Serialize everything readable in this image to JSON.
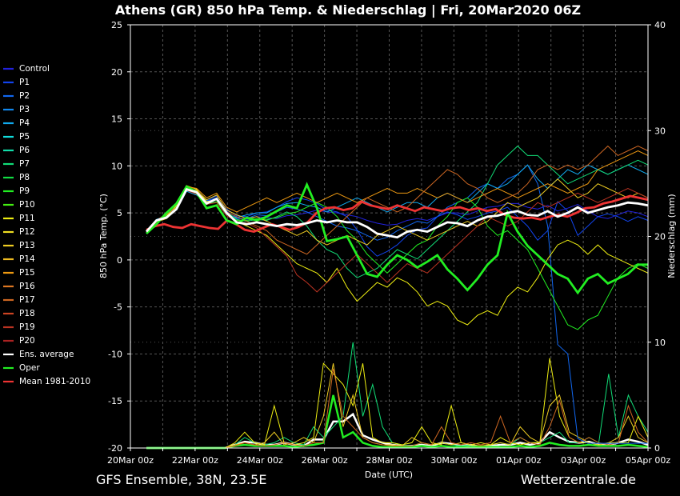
{
  "header": {
    "title": "Athens  (GR)  850 hPa Temp. & Niederschlag | Fri, 20Mar2020 06Z"
  },
  "footer": {
    "left": "GFS Ensemble, 38N, 23.5E",
    "right": "Wetterzentrale.de"
  },
  "chart_data": {
    "type": "line",
    "xlabel": "Date (UTC)",
    "ylabel": "850 hPa Temp. (°C)",
    "y2label": "Niederschlag (mm)",
    "ylim": [
      -20,
      25
    ],
    "y2lim": [
      0,
      40
    ],
    "yticks": [
      25,
      20,
      15,
      10,
      5,
      0,
      -5,
      -10,
      -15,
      -20
    ],
    "y2ticks": [
      40,
      30,
      20,
      10,
      0
    ],
    "xticks": [
      "20Mar 00z",
      "22Mar 00z",
      "24Mar 00z",
      "26Mar 00z",
      "28Mar 00z",
      "30Mar 00z",
      "01Apr 00z",
      "03Apr 00z",
      "05Apr 00z"
    ],
    "grid": true,
    "legend_position": "left",
    "legend": [
      {
        "name": "Control",
        "color": "#2222dd"
      },
      {
        "name": "P1",
        "color": "#1144ee"
      },
      {
        "name": "P2",
        "color": "#1166ee"
      },
      {
        "name": "P3",
        "color": "#1188ee"
      },
      {
        "name": "P4",
        "color": "#11aaee"
      },
      {
        "name": "P5",
        "color": "#11dddd"
      },
      {
        "name": "P6",
        "color": "#11ddaa"
      },
      {
        "name": "P7",
        "color": "#11dd77"
      },
      {
        "name": "P8",
        "color": "#11dd44"
      },
      {
        "name": "P9",
        "color": "#22ee22"
      },
      {
        "name": "P10",
        "color": "#44ee11"
      },
      {
        "name": "P11",
        "color": "#eeee11"
      },
      {
        "name": "P12",
        "color": "#eedd22"
      },
      {
        "name": "P13",
        "color": "#eecc22"
      },
      {
        "name": "P14",
        "color": "#eebb22"
      },
      {
        "name": "P15",
        "color": "#ee9911"
      },
      {
        "name": "P16",
        "color": "#dd7722"
      },
      {
        "name": "P17",
        "color": "#cc6622"
      },
      {
        "name": "P18",
        "color": "#cc4422"
      },
      {
        "name": "P19",
        "color": "#bb3322"
      },
      {
        "name": "P20",
        "color": "#aa2222"
      },
      {
        "name": "Ens. average",
        "color": "#ffffff"
      },
      {
        "name": "Oper",
        "color": "#22ee22"
      },
      {
        "name": "Mean 1981-2010",
        "color": "#ee3333"
      }
    ],
    "series_temp": {
      "Ens. average": [
        3.0,
        4.2,
        4.5,
        5.4,
        7.5,
        7.2,
        6.0,
        6.5,
        5.0,
        4.0,
        3.8,
        4.0,
        3.8,
        3.6,
        3.8,
        3.7,
        3.9,
        4.2,
        4.0,
        4.2,
        4.0,
        4.0,
        3.5,
        2.8,
        2.6,
        2.4,
        3.0,
        3.2,
        3.0,
        3.5,
        4.0,
        3.9,
        3.6,
        4.2,
        4.6,
        4.7,
        5.0,
        5.2,
        4.8,
        4.7,
        5.2,
        4.6,
        5.0,
        5.6,
        5.0,
        5.3,
        5.6,
        5.8,
        6.1,
        6.0,
        5.8
      ],
      "Oper": [
        2.8,
        3.8,
        5.0,
        6.0,
        7.8,
        7.2,
        5.5,
        5.8,
        4.2,
        3.8,
        4.5,
        4.2,
        4.6,
        5.2,
        5.8,
        5.5,
        8.0,
        5.5,
        2.0,
        2.2,
        2.5,
        0.5,
        -1.5,
        -1.8,
        -0.5,
        0.5,
        0.0,
        -0.8,
        -0.2,
        0.5,
        -1.0,
        -2.0,
        -3.2,
        -2.0,
        -0.5,
        0.5,
        5.0,
        3.0,
        1.5,
        0.5,
        -0.5,
        -1.5,
        -2.0,
        -3.5,
        -2.0,
        -1.5,
        -2.5,
        -2.0,
        -1.5,
        -0.5,
        -0.5
      ],
      "Control": [
        3.0,
        4.0,
        4.8,
        5.5,
        7.6,
        7.3,
        6.2,
        6.6,
        5.2,
        4.5,
        4.3,
        4.6,
        4.5,
        4.4,
        4.7,
        4.8,
        5.0,
        5.3,
        5.1,
        5.0,
        4.8,
        4.6,
        4.2,
        3.9,
        3.7,
        3.8,
        4.2,
        4.4,
        4.2,
        4.6,
        5.0,
        5.0,
        4.8,
        5.2,
        5.6,
        5.7,
        6.0,
        6.0,
        5.6,
        5.4,
        5.8,
        5.2,
        5.5,
        5.9,
        5.2,
        4.6,
        4.4,
        4.8,
        5.2,
        5.0,
        4.6
      ],
      "P1": [
        3.0,
        4.1,
        4.6,
        5.6,
        7.7,
        7.4,
        6.4,
        6.8,
        5.4,
        4.7,
        4.6,
        5.0,
        5.1,
        5.6,
        6.2,
        6.6,
        6.4,
        6.0,
        5.3,
        5.1,
        4.6,
        3.2,
        1.4,
        0.4,
        0.9,
        1.6,
        2.6,
        3.2,
        3.4,
        4.6,
        5.1,
        4.8,
        4.3,
        4.6,
        5.0,
        5.2,
        5.6,
        4.6,
        3.6,
        2.1,
        3.1,
        6.2,
        5.2,
        2.6,
        3.6,
        4.6,
        4.9,
        4.6,
        4.1,
        4.6,
        4.2
      ],
      "P2": [
        3.1,
        4.2,
        4.9,
        5.5,
        7.5,
        7.0,
        6.3,
        6.6,
        5.0,
        4.4,
        4.4,
        4.8,
        4.7,
        5.1,
        5.6,
        5.4,
        5.1,
        4.6,
        4.1,
        3.6,
        3.4,
        3.1,
        2.6,
        2.1,
        2.4,
        3.1,
        3.6,
        4.1,
        3.9,
        4.6,
        5.6,
        6.1,
        6.6,
        7.6,
        8.1,
        7.6,
        8.6,
        9.1,
        10.1,
        8.1,
        3.6,
        -9.0,
        -10.0,
        -19.0,
        -19.5,
        -19.5,
        -19.5,
        -19.5,
        -19.5,
        -19.5,
        -19.5
      ],
      "P4": [
        3.0,
        4.3,
        4.7,
        5.3,
        7.3,
        6.9,
        6.0,
        6.2,
        4.8,
        4.5,
        4.8,
        5.0,
        5.0,
        5.6,
        6.0,
        6.1,
        5.8,
        5.6,
        5.1,
        5.6,
        6.1,
        6.6,
        6.1,
        5.6,
        5.1,
        5.6,
        6.1,
        6.1,
        5.6,
        6.6,
        7.1,
        6.6,
        6.1,
        7.1,
        8.1,
        7.6,
        8.1,
        9.1,
        10.1,
        8.6,
        7.6,
        8.6,
        9.6,
        9.1,
        10.1,
        9.6,
        9.1,
        9.6,
        10.1,
        9.6,
        9.1
      ],
      "P7": [
        2.9,
        4.0,
        4.8,
        5.7,
        7.7,
        7.2,
        6.1,
        6.5,
        5.1,
        4.3,
        4.1,
        4.3,
        4.2,
        4.6,
        5.1,
        4.6,
        3.6,
        2.1,
        1.1,
        0.6,
        -0.9,
        -1.9,
        -1.4,
        -0.9,
        0.1,
        1.1,
        0.6,
        0.1,
        1.1,
        2.1,
        3.1,
        4.1,
        5.1,
        6.1,
        8.1,
        10.1,
        11.1,
        12.1,
        11.1,
        11.1,
        10.1,
        9.1,
        8.1,
        8.6,
        9.1,
        9.6,
        9.1,
        9.6,
        10.1,
        10.6,
        10.1
      ],
      "P9": [
        2.9,
        4.1,
        4.7,
        5.4,
        7.4,
        7.1,
        5.9,
        6.2,
        4.9,
        4.2,
        4.2,
        4.4,
        4.3,
        4.5,
        4.9,
        5.1,
        5.6,
        6.1,
        5.6,
        4.6,
        3.1,
        2.1,
        0.6,
        -0.4,
        -1.4,
        -0.4,
        0.6,
        1.6,
        2.1,
        3.6,
        4.6,
        6.1,
        6.6,
        5.6,
        3.6,
        2.6,
        3.1,
        2.1,
        1.1,
        -0.9,
        -2.9,
        -4.9,
        -6.9,
        -7.4,
        -6.4,
        -5.9,
        -3.9,
        -1.9,
        -0.9,
        -0.4,
        -0.9
      ],
      "P11": [
        3.0,
        4.2,
        4.6,
        5.8,
        7.9,
        7.5,
        6.2,
        6.4,
        5.0,
        4.1,
        3.6,
        3.1,
        2.6,
        1.6,
        0.6,
        -0.4,
        -0.9,
        -1.4,
        -2.4,
        -0.9,
        -2.9,
        -4.4,
        -3.4,
        -2.4,
        -2.9,
        -1.9,
        -2.4,
        -3.4,
        -4.9,
        -4.4,
        -4.9,
        -6.4,
        -6.9,
        -5.9,
        -5.4,
        -5.9,
        -3.9,
        -2.9,
        -3.4,
        -1.9,
        0.1,
        1.6,
        2.1,
        1.6,
        0.6,
        1.6,
        0.6,
        0.1,
        -0.4,
        -0.9,
        -1.4
      ],
      "P13": [
        3.0,
        4.0,
        4.4,
        5.4,
        7.6,
        7.4,
        6.4,
        6.9,
        5.3,
        4.8,
        4.4,
        4.6,
        4.1,
        3.6,
        3.1,
        2.6,
        3.1,
        2.1,
        1.6,
        2.1,
        2.6,
        2.1,
        1.6,
        2.6,
        3.1,
        3.6,
        3.1,
        2.6,
        2.1,
        2.6,
        3.1,
        3.6,
        4.1,
        3.6,
        4.1,
        5.1,
        6.1,
        5.6,
        6.1,
        6.6,
        7.6,
        8.6,
        7.6,
        6.6,
        7.1,
        8.1,
        7.6,
        7.1,
        6.6,
        7.1,
        6.6
      ],
      "P15": [
        3.0,
        4.1,
        4.8,
        5.6,
        7.8,
        7.6,
        6.6,
        7.1,
        5.6,
        5.1,
        5.6,
        6.1,
        6.6,
        6.1,
        6.6,
        7.1,
        6.6,
        6.1,
        6.6,
        7.1,
        6.6,
        6.1,
        6.6,
        7.1,
        7.6,
        7.1,
        7.1,
        7.6,
        7.1,
        6.6,
        7.1,
        6.6,
        6.1,
        6.6,
        7.1,
        7.6,
        7.1,
        6.6,
        7.1,
        7.6,
        8.1,
        7.6,
        7.1,
        7.6,
        8.1,
        9.6,
        10.1,
        10.6,
        11.1,
        11.6,
        11.1
      ],
      "P17": [
        3.0,
        4.2,
        4.9,
        5.9,
        7.9,
        7.3,
        6.1,
        6.4,
        5.1,
        4.6,
        4.1,
        3.6,
        3.1,
        2.1,
        1.6,
        1.1,
        0.6,
        1.6,
        2.6,
        3.6,
        4.6,
        5.6,
        6.6,
        6.1,
        5.6,
        5.1,
        5.6,
        6.6,
        7.6,
        8.6,
        9.6,
        9.1,
        8.1,
        7.6,
        6.6,
        6.1,
        6.6,
        7.1,
        8.1,
        9.6,
        10.1,
        9.6,
        10.1,
        9.6,
        10.1,
        11.1,
        12.1,
        11.1,
        11.6,
        12.1,
        11.6
      ],
      "P19": [
        2.9,
        4.0,
        4.5,
        5.4,
        7.4,
        7.0,
        5.9,
        6.1,
        4.7,
        4.1,
        3.9,
        3.4,
        2.4,
        1.4,
        0.4,
        -1.6,
        -2.4,
        -3.4,
        -2.4,
        -1.4,
        -0.4,
        0.6,
        -0.4,
        -1.4,
        -2.4,
        -1.4,
        -0.4,
        -0.9,
        -1.4,
        -0.4,
        0.6,
        1.6,
        2.6,
        3.6,
        4.6,
        4.1,
        3.6,
        4.1,
        5.1,
        6.1,
        5.6,
        6.1,
        6.6,
        7.1,
        6.6,
        6.1,
        6.6,
        7.1,
        7.6,
        7.1,
        6.6
      ],
      "Mean 1981-2010": [
        3.2,
        3.6,
        3.8,
        3.5,
        3.4,
        3.8,
        3.6,
        3.4,
        3.3,
        4.2,
        3.8,
        3.2,
        3.0,
        3.4,
        3.8,
        3.5,
        3.2,
        3.5,
        4.0,
        5.0,
        5.5,
        5.6,
        5.3,
        5.5,
        6.2,
        5.8,
        5.6,
        5.4,
        5.8,
        5.5,
        5.2,
        5.6,
        5.4,
        5.2,
        5.5,
        5.6,
        5.3,
        5.5,
        5.2,
        5.4,
        4.8,
        4.5,
        4.4,
        4.5,
        4.3,
        4.6,
        4.8,
        4.6,
        5.0,
        5.5,
        5.6,
        6.0,
        6.2,
        6.5,
        6.8,
        6.6,
        6.4
      ]
    },
    "series_precip": {
      "Ens. average": [
        0,
        0,
        0,
        0,
        0,
        0,
        0,
        0,
        0,
        0.3,
        0.6,
        0.5,
        0.3,
        0.3,
        0.5,
        0.3,
        0.2,
        0.8,
        0.8,
        2.5,
        2.5,
        3.2,
        1.2,
        0.8,
        0.5,
        0.3,
        0.2,
        0.2,
        0.3,
        0.2,
        0.5,
        0.4,
        0.2,
        0.3,
        0.1,
        0.2,
        0.3,
        0.3,
        0.5,
        0.3,
        0.5,
        1.5,
        1.0,
        0.6,
        0.5,
        0.6,
        0.3,
        0.3,
        0.5,
        0.8,
        0.6,
        0.3
      ],
      "Oper": [
        0,
        0,
        0,
        0,
        0,
        0,
        0,
        0,
        0,
        0.2,
        0.3,
        0.2,
        0.2,
        0.2,
        0.2,
        0.1,
        0.2,
        0.3,
        0.5,
        5.0,
        1.0,
        1.5,
        0.5,
        0.2,
        0.1,
        0.1,
        0.1,
        0.1,
        0.2,
        0.1,
        0.2,
        0.1,
        0.1,
        0.1,
        0.1,
        0.1,
        0.1,
        0.1,
        0.2,
        0.1,
        0.2,
        0.5,
        0.3,
        0.2,
        0.2,
        0.3,
        0.2,
        0.2,
        0.2,
        0.3,
        0.2,
        0.1
      ],
      "P7": [
        0,
        0,
        0,
        0,
        0,
        0,
        0,
        0,
        0,
        0.3,
        1.0,
        0.5,
        0.3,
        0.5,
        1.0,
        0.5,
        0.3,
        2.0,
        1.0,
        2.0,
        3.0,
        10.0,
        3.0,
        6.0,
        2.0,
        0.5,
        0.3,
        0.2,
        0.5,
        0.3,
        0.5,
        0.3,
        0.2,
        0.3,
        0.2,
        0.3,
        0.5,
        0.3,
        1.0,
        0.5,
        0.5,
        1.0,
        1.5,
        0.5,
        0.5,
        1.0,
        0.5,
        7.0,
        1.0,
        5.0,
        3.0,
        1.5
      ],
      "P11": [
        0,
        0,
        0,
        0,
        0,
        0,
        0,
        0,
        0,
        0.5,
        1.5,
        0.5,
        0.3,
        4.0,
        0.5,
        0.3,
        0.5,
        1.0,
        8.0,
        7.0,
        6.0,
        4.0,
        8.0,
        1.0,
        0.5,
        0.5,
        0.3,
        0.5,
        2.0,
        0.5,
        0.3,
        4.0,
        0.5,
        0.3,
        0.5,
        0.3,
        1.0,
        0.5,
        0.3,
        0.5,
        0.5,
        8.5,
        3.0,
        1.0,
        0.5,
        0.5,
        0.3,
        0.5,
        0.5,
        0.5,
        3.0,
        1.0
      ],
      "P13": [
        0,
        0,
        0,
        0,
        0,
        0,
        0,
        0,
        0,
        0.3,
        0.5,
        0.3,
        0.5,
        1.5,
        0.3,
        0.5,
        1.0,
        0.5,
        3.0,
        8.0,
        2.0,
        5.0,
        1.0,
        0.5,
        0.3,
        0.3,
        0.2,
        1.0,
        0.5,
        0.3,
        0.5,
        0.3,
        0.5,
        0.3,
        0.2,
        0.3,
        0.5,
        0.3,
        2.0,
        1.0,
        0.5,
        4.0,
        5.0,
        1.5,
        1.0,
        0.5,
        0.3,
        0.5,
        1.0,
        3.0,
        1.0,
        0.5
      ],
      "P17": [
        0,
        0,
        0,
        0,
        0,
        0,
        0,
        0,
        0,
        0.2,
        0.5,
        0.3,
        0.2,
        0.3,
        0.5,
        0.3,
        0.2,
        0.5,
        0.5,
        7.5,
        3.0,
        2.0,
        1.0,
        0.5,
        0.3,
        0.2,
        0.2,
        0.2,
        0.5,
        0.3,
        2.0,
        0.5,
        0.3,
        0.5,
        0.3,
        0.5,
        3.0,
        0.5,
        1.0,
        0.5,
        0.3,
        2.0,
        4.5,
        1.0,
        0.5,
        1.0,
        0.5,
        0.3,
        0.5,
        4.0,
        1.5,
        0.5
      ]
    }
  }
}
